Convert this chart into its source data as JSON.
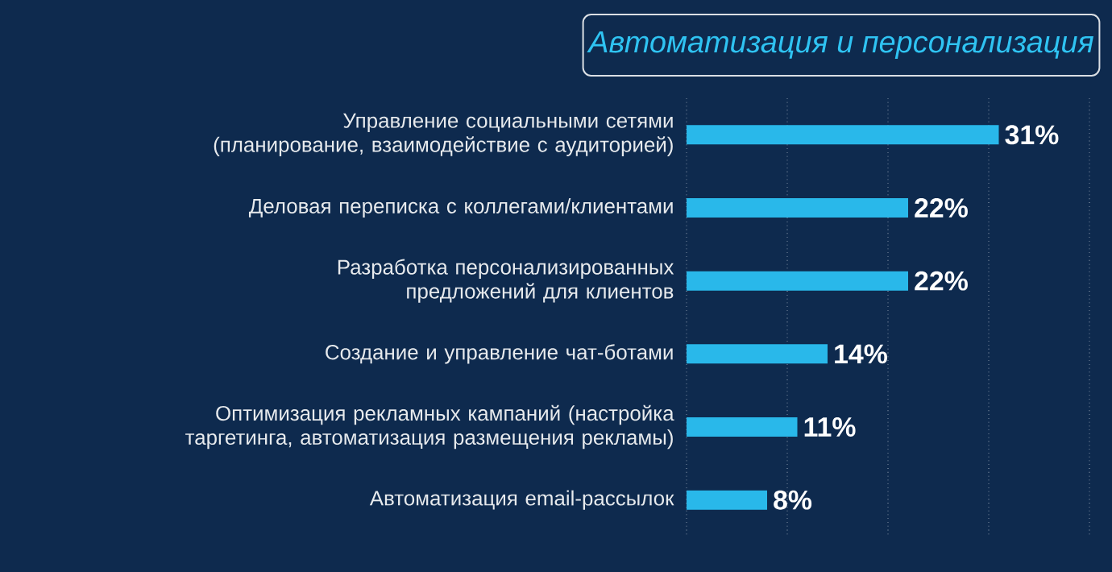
{
  "chart_data": {
    "type": "bar",
    "orientation": "horizontal",
    "title": "Автоматизация и персонализация",
    "categories": [
      "Управление социальными сетями (планирование, взаимодействие с аудиторией)",
      "Деловая переписка с коллегами/клиентами",
      "Разработка персонализированных предложений для клиентов",
      "Создание и управление чат-ботами",
      "Оптимизация рекламных кампаний (настройка таргетинга, автоматизация размещения рекламы)",
      "Автоматизация email-рассылок"
    ],
    "values": [
      31,
      22,
      22,
      14,
      11,
      8
    ],
    "value_labels": [
      "31%",
      "22%",
      "22%",
      "14%",
      "11%",
      "8%"
    ],
    "color": "#29b8ea",
    "xlim": [
      0,
      40
    ],
    "xticks": [
      {
        "value": 0,
        "label": null
      },
      {
        "value": 10,
        "label": null
      },
      {
        "value": 20,
        "label": null
      },
      {
        "value": 30,
        "label": null
      },
      {
        "value": 40,
        "label": null
      }
    ],
    "grid": "x",
    "tick_labels": "y"
  }
}
